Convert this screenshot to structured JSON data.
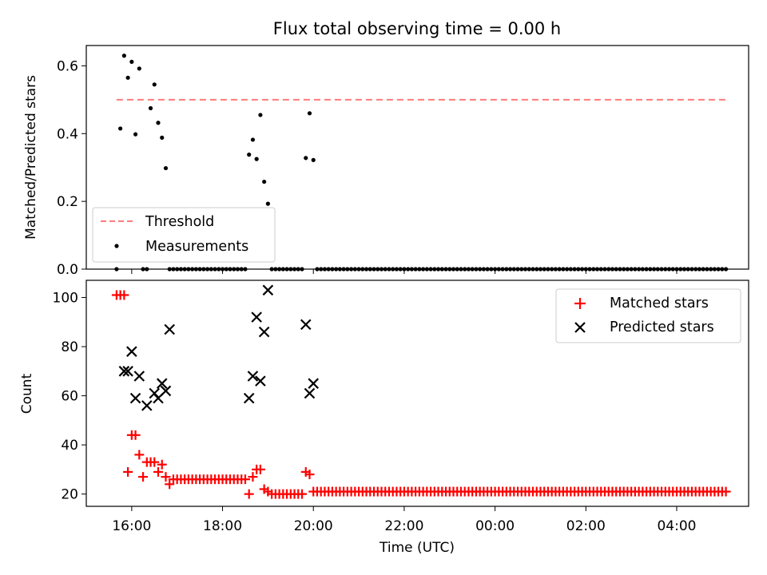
{
  "chart_data": [
    {
      "type": "scatter",
      "title": "Flux total observing time = 0.00 h",
      "xlabel": "",
      "ylabel": "Matched/Predicted stars",
      "ylim": [
        0,
        0.66
      ],
      "xlim": [
        "15:00",
        "05:35"
      ],
      "yticks": [
        0.0,
        0.2,
        0.4,
        0.6
      ],
      "ytick_labels": [
        "0.0",
        "0.2",
        "0.4",
        "0.6"
      ],
      "legend_position": "lower-left",
      "colors": {
        "threshold": "#ff7b7b",
        "measurements": "#000000"
      },
      "series": [
        {
          "name": "Threshold",
          "style": "dashed-line",
          "x": [
            "15:40",
            "05:05"
          ],
          "values": [
            0.5,
            0.5
          ]
        },
        {
          "name": "Measurements",
          "style": "dot",
          "x": [
            "15:45",
            "15:50",
            "15:55",
            "16:00",
            "16:05",
            "16:10",
            "16:15",
            "16:25",
            "16:30",
            "16:35",
            "16:40",
            "16:45",
            "16:50",
            "18:35",
            "18:40",
            "18:45",
            "18:50",
            "18:55",
            "19:00",
            "19:50",
            "19:55",
            "20:00"
          ],
          "values": [
            0.415,
            0.63,
            0.565,
            0.612,
            0.398,
            0.592,
            0.0,
            0.475,
            0.545,
            0.432,
            0.388,
            0.298,
            0.0,
            0.338,
            0.382,
            0.325,
            0.455,
            0.258,
            0.193,
            0.328,
            0.46,
            0.322
          ],
          "zeros_from": "15:40",
          "zeros_to": "05:05",
          "zeros_step_minutes": 5
        }
      ]
    },
    {
      "type": "scatter",
      "title": "",
      "xlabel": "Time (UTC)",
      "ylabel": "Count",
      "ylim": [
        15,
        107
      ],
      "xlim": [
        "15:00",
        "05:35"
      ],
      "yticks": [
        20,
        40,
        60,
        80,
        100
      ],
      "ytick_labels": [
        "20",
        "40",
        "60",
        "80",
        "100"
      ],
      "xtick_labels": [
        "16:00",
        "18:00",
        "20:00",
        "22:00",
        "00:00",
        "02:00",
        "04:00"
      ],
      "legend_position": "top-right",
      "colors": {
        "matched": "#ff0000",
        "predicted": "#000000"
      },
      "series": [
        {
          "name": "Matched stars",
          "marker": "+",
          "x": [
            "15:40",
            "15:45",
            "15:50",
            "15:55",
            "16:00",
            "16:05",
            "16:10",
            "16:15",
            "16:20",
            "16:25",
            "16:30",
            "16:35",
            "16:40",
            "16:45",
            "16:50",
            "18:35",
            "18:40",
            "18:45",
            "18:50",
            "18:55",
            "19:00",
            "19:50",
            "19:55",
            "20:00"
          ],
          "values": [
            101,
            101,
            101,
            29,
            44,
            44,
            36,
            27,
            33,
            33,
            33,
            29,
            32,
            27,
            24,
            20,
            27,
            30,
            30,
            22,
            21,
            29,
            28,
            21
          ],
          "fill_value": 26,
          "fill_from": "16:50",
          "fill_to": "18:35",
          "tail_value": 20,
          "tail_from": "19:00",
          "tail_to": "19:45",
          "rest_value": 21,
          "rest_from": "20:00",
          "rest_to": "05:05",
          "step_minutes": 5
        },
        {
          "name": "Predicted stars",
          "marker": "x",
          "x": [
            "15:50",
            "15:55",
            "16:00",
            "16:05",
            "16:10",
            "16:20",
            "16:30",
            "16:35",
            "16:40",
            "16:45",
            "16:50",
            "18:35",
            "18:40",
            "18:45",
            "18:50",
            "18:55",
            "19:00",
            "19:50",
            "19:55",
            "20:00"
          ],
          "values": [
            70,
            70,
            78,
            59,
            68,
            56,
            61,
            59,
            65,
            62,
            87,
            59,
            68,
            92,
            66,
            86,
            103,
            89,
            61,
            65
          ]
        }
      ]
    }
  ]
}
